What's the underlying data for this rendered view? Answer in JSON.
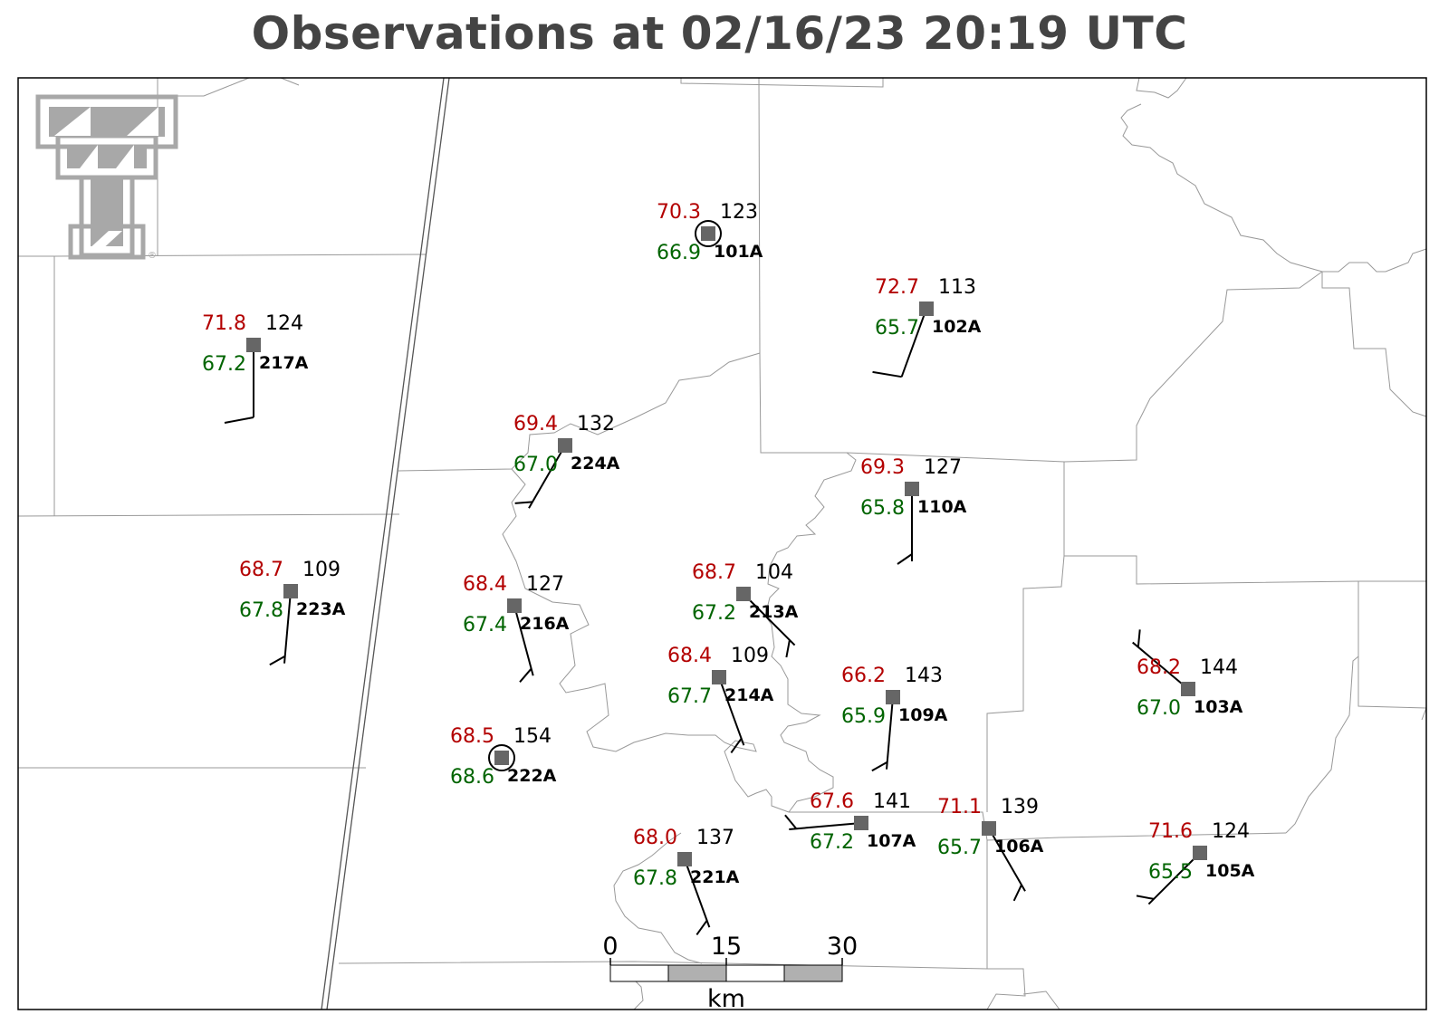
{
  "title": "Observations at 02/16/23 20:19 UTC",
  "colors": {
    "temperature": "#b30000",
    "dewpoint": "#006400",
    "label": "#000000",
    "station": "#666666",
    "county_line": "#999999",
    "state_line": "#555555",
    "title": "#444444",
    "logo": "#a8a8a8"
  },
  "logo": {
    "name": "texas-tech-double-t-logo",
    "mark": "®"
  },
  "stations": [
    {
      "id": "101A",
      "temp": "70.3",
      "dew": "66.9",
      "dir": "123",
      "circle": true,
      "wind_dir": null,
      "wind_kt": 0
    },
    {
      "id": "102A",
      "temp": "72.7",
      "dew": "65.7",
      "dir": "113",
      "circle": false,
      "wind_dir": 200,
      "wind_kt": 10
    },
    {
      "id": "217A",
      "temp": "71.8",
      "dew": "67.2",
      "dir": "124",
      "circle": false,
      "wind_dir": 180,
      "wind_kt": 10
    },
    {
      "id": "224A",
      "temp": "69.4",
      "dew": "67.0",
      "dir": "132",
      "circle": false,
      "wind_dir": 210,
      "wind_kt": 5
    },
    {
      "id": "110A",
      "temp": "69.3",
      "dew": "65.8",
      "dir": "127",
      "circle": false,
      "wind_dir": 180,
      "wind_kt": 5
    },
    {
      "id": "223A",
      "temp": "68.7",
      "dew": "67.8",
      "dir": "109",
      "circle": false,
      "wind_dir": 185,
      "wind_kt": 5
    },
    {
      "id": "216A",
      "temp": "68.4",
      "dew": "67.4",
      "dir": "127",
      "circle": false,
      "wind_dir": 165,
      "wind_kt": 5
    },
    {
      "id": "213A",
      "temp": "68.7",
      "dew": "67.2",
      "dir": "104",
      "circle": false,
      "wind_dir": 135,
      "wind_kt": 5
    },
    {
      "id": "214A",
      "temp": "68.4",
      "dew": "67.7",
      "dir": "109",
      "circle": false,
      "wind_dir": 160,
      "wind_kt": 5
    },
    {
      "id": "109A",
      "temp": "66.2",
      "dew": "65.9",
      "dir": "143",
      "circle": false,
      "wind_dir": 185,
      "wind_kt": 5
    },
    {
      "id": "103A",
      "temp": "68.2",
      "dew": "67.0",
      "dir": "144",
      "circle": false,
      "wind_dir": 310,
      "wind_kt": 5
    },
    {
      "id": "222A",
      "temp": "68.5",
      "dew": "68.6",
      "dir": "154",
      "circle": true,
      "wind_dir": null,
      "wind_kt": 0
    },
    {
      "id": "107A",
      "temp": "67.6",
      "dew": "67.2",
      "dir": "141",
      "circle": false,
      "wind_dir": 265,
      "wind_kt": 5
    },
    {
      "id": "106A",
      "temp": "71.1",
      "dew": "65.7",
      "dir": "139",
      "circle": false,
      "wind_dir": 150,
      "wind_kt": 5
    },
    {
      "id": "105A",
      "temp": "71.6",
      "dew": "65.5",
      "dir": "124",
      "circle": false,
      "wind_dir": 225,
      "wind_kt": 5
    },
    {
      "id": "221A",
      "temp": "68.0",
      "dew": "67.8",
      "dir": "137",
      "circle": false,
      "wind_dir": 160,
      "wind_kt": 5
    }
  ],
  "scale_bar": {
    "labels": [
      "0",
      "15",
      "30"
    ],
    "unit": "km"
  }
}
